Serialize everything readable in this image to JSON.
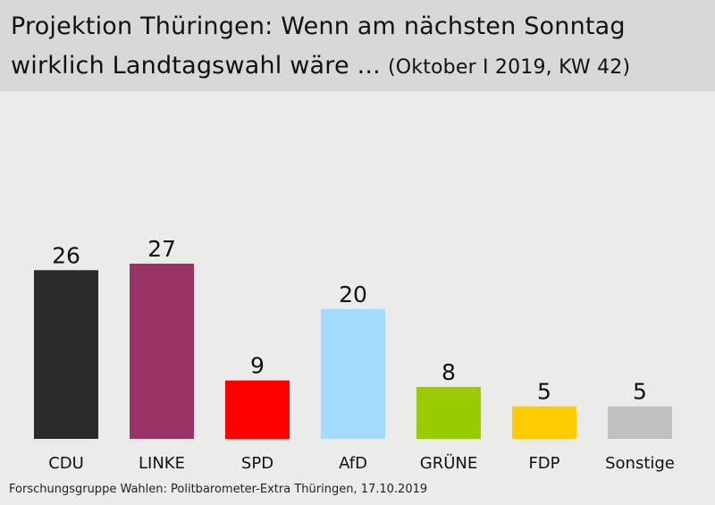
{
  "header": {
    "title_line1": "Projektion Thüringen: Wenn am nächsten Sonntag",
    "title_line2": "wirklich Landtagswahl wäre ...",
    "subtitle": "(Oktober I 2019, KW 42)"
  },
  "source": "Forschungsgruppe Wahlen: Politbarometer-Extra Thüringen, 17.10.2019",
  "chart_data": {
    "type": "bar",
    "title": "Projektion Thüringen: Wenn am nächsten Sonntag wirklich Landtagswahl wäre ...",
    "subtitle": "(Oktober I 2019, KW 42)",
    "categories": [
      "CDU",
      "LINKE",
      "SPD",
      "AfD",
      "GRÜNE",
      "FDP",
      "Sonstige"
    ],
    "values": [
      26,
      27,
      9,
      20,
      8,
      5,
      5
    ],
    "colors": [
      "#2b2b2b",
      "#993366",
      "#ff0000",
      "#a3dbff",
      "#99cc00",
      "#ffcc00",
      "#c0c0c0"
    ],
    "xlabel": "",
    "ylabel": "",
    "ylim": [
      0,
      27
    ],
    "grid": false,
    "legend": "none",
    "data_labels": true
  }
}
